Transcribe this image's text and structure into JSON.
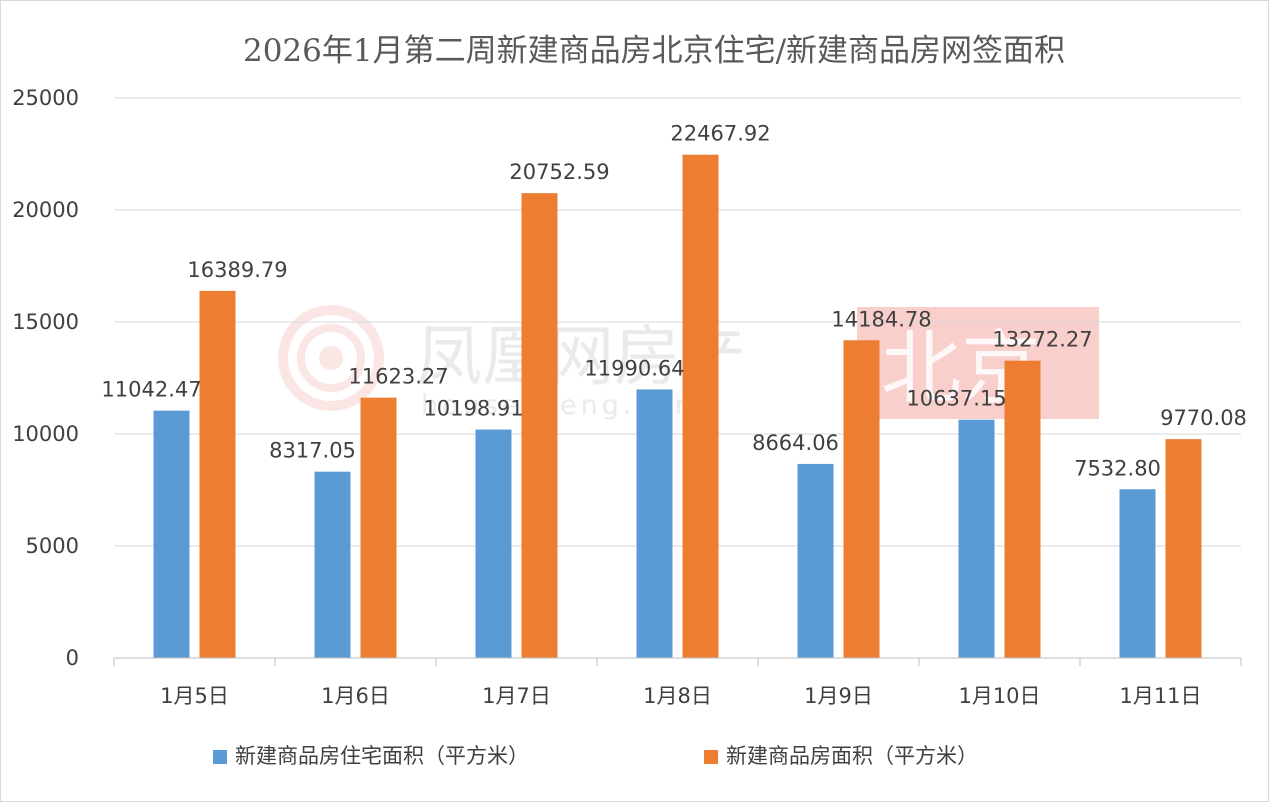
{
  "chart_data": {
    "type": "bar",
    "title": "2026年1月第二周新建商品房北京住宅/新建商品房网签面积",
    "categories": [
      "1月5日",
      "1月6日",
      "1月7日",
      "1月8日",
      "1月9日",
      "1月10日",
      "1月11日"
    ],
    "series": [
      {
        "name": "新建商品房住宅面积（平方米）",
        "color": "#5b9bd5",
        "values": [
          11042.47,
          8317.05,
          10198.91,
          11990.64,
          8664.06,
          10637.15,
          7532.8
        ],
        "labels": [
          "11042.47",
          "8317.05",
          "10198.91",
          "11990.64",
          "8664.06",
          "10637.15",
          "7532.80"
        ]
      },
      {
        "name": "新建商品房面积（平方米）",
        "color": "#ed7d31",
        "values": [
          16389.79,
          11623.27,
          20752.59,
          22467.92,
          14184.78,
          13272.27,
          9770.08
        ],
        "labels": [
          "16389.79",
          "11623.27",
          "20752.59",
          "22467.92",
          "14184.78",
          "13272.27",
          "9770.08"
        ]
      }
    ],
    "ylim": [
      0,
      25000
    ],
    "yticks": [
      "0",
      "5000",
      "10000",
      "15000",
      "20000",
      "25000"
    ],
    "ytick_values": [
      0,
      5000,
      10000,
      15000,
      20000,
      25000
    ],
    "grid": true,
    "legend": "bottom",
    "xlabel": "",
    "ylabel": ""
  },
  "watermark": {
    "brand": "凤凰网房产",
    "site": "house.ifeng.com",
    "city": "北京",
    "badge_color": "#f4a09a",
    "logo_color": "#f2b8b3"
  }
}
